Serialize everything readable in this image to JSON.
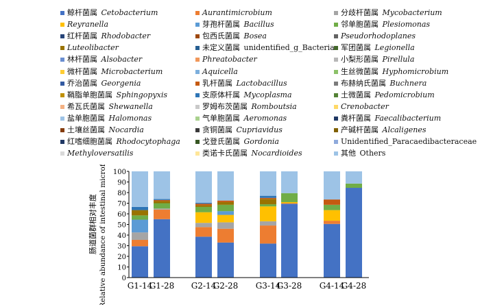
{
  "chart_data": {
    "type": "bar",
    "stacked": true,
    "categories": [
      "G1-14",
      "G1-28",
      "G2-14",
      "G2-28",
      "G3-14",
      "G3-28",
      "G4-14",
      "G4-28"
    ],
    "ylim": [
      0,
      100
    ],
    "yticks": [
      "0",
      "10",
      "20",
      "30",
      "40",
      "50",
      "60",
      "70",
      "80",
      "90",
      "100"
    ],
    "ylabel_cn": "肠道菌群相对丰度",
    "ylabel_en": "Relative abundance of intestinal microflora/%",
    "legend": [
      {
        "cn": "鲸杆菌属",
        "latin": "Cetobacterium",
        "color": "#4472c4"
      },
      {
        "cn": "",
        "latin": "Aurantimicrobium",
        "color": "#ed7d31"
      },
      {
        "cn": "分歧杆菌属",
        "latin": "Mycobacterium",
        "color": "#a5a5a5"
      },
      {
        "cn": "",
        "latin": "Reyranella",
        "color": "#ffc000"
      },
      {
        "cn": "芽孢杆菌属",
        "latin": "Bacillus",
        "color": "#5b9bd5"
      },
      {
        "cn": "邻单胞菌属",
        "latin": "Plesiomonas",
        "color": "#70ad47"
      },
      {
        "cn": "红杆菌属",
        "latin": "Rhodobacter",
        "color": "#264478"
      },
      {
        "cn": "包西氏菌属",
        "latin": "Bosea",
        "color": "#9e480e"
      },
      {
        "cn": "",
        "latin": "Pseudorhodoplanes",
        "color": "#636363"
      },
      {
        "cn": "",
        "latin": "Luteolibacter",
        "color": "#997300"
      },
      {
        "cn": "未定义菌属",
        "plain": "unidentified_g_Bacteria",
        "color": "#255e91"
      },
      {
        "cn": "军团菌属",
        "latin": "Legionella",
        "color": "#43682b"
      },
      {
        "cn": "林杆菌属",
        "latin": "Alsobacter",
        "color": "#698ed0"
      },
      {
        "cn": "",
        "latin": "Phreatobacter",
        "color": "#f1975a"
      },
      {
        "cn": "小梨形菌属",
        "latin": "Pirellula",
        "color": "#b7b7b7"
      },
      {
        "cn": "微杆菌属",
        "latin": "Microbacterium",
        "color": "#ffcd33"
      },
      {
        "cn": "",
        "latin": "Aquicella",
        "color": "#7cafdd"
      },
      {
        "cn": "生丝微菌属",
        "latin": "Hyphomicrobium",
        "color": "#8cc168"
      },
      {
        "cn": "乔治菌属",
        "latin": "Georgenia",
        "color": "#335aa1"
      },
      {
        "cn": "乳杆菌属",
        "latin": "Lactobacillus",
        "color": "#c55a11"
      },
      {
        "cn": "布赫纳氏菌属",
        "latin": "Buchnera",
        "color": "#7b7b7b"
      },
      {
        "cn": "鞘脂单胞菌属",
        "latin": "Sphingopyxis",
        "color": "#bf9000"
      },
      {
        "cn": "支原体杆属",
        "latin": "Mycoplasma",
        "color": "#2e75b6"
      },
      {
        "cn": "土微菌属",
        "latin": "Pedomicrobium",
        "color": "#548235"
      },
      {
        "cn": "希瓦氏菌属",
        "latin": "Shewanella",
        "color": "#f4b183"
      },
      {
        "cn": "罗姆布茨菌属",
        "latin": "Romboutsia",
        "color": "#c9c9c9"
      },
      {
        "cn": "",
        "latin": "Crenobacter",
        "color": "#ffd966"
      },
      {
        "cn": "盐单胞菌属",
        "latin": "Halomonas",
        "color": "#9dc3e6"
      },
      {
        "cn": "气单胞菌属",
        "latin": "Aeromonas",
        "color": "#a9d18e"
      },
      {
        "cn": "粪杆菌属",
        "latin": "Faecalibacterium",
        "color": "#1f3864"
      },
      {
        "cn": "土壤丝菌属",
        "latin": "Nocardia",
        "color": "#843c0c"
      },
      {
        "cn": "贪铜菌属",
        "latin": "Cupriavidus",
        "color": "#3a3a3a"
      },
      {
        "cn": "产碱杆菌属",
        "latin": "Alcaligenes",
        "color": "#7f6000"
      },
      {
        "cn": "红嗜细胞菌属",
        "latin": "Rhodocytophaga",
        "color": "#203864"
      },
      {
        "cn": "戈登氏菌属",
        "latin": "Gordonia",
        "color": "#375623"
      },
      {
        "cn": "",
        "plain": "Unidentified_Paracaedibacteraceae",
        "color": "#8faadc"
      },
      {
        "cn": "",
        "latin": "Methyloversatilis",
        "color": "#d9d9d9"
      },
      {
        "cn": "类诺卡氏菌属",
        "latin": "Nocardioides",
        "color": "#ffe699"
      },
      {
        "cn": "其他",
        "plain": "Others",
        "color": "#9dc3e6"
      }
    ],
    "series": [
      {
        "name": "Cetobacterium",
        "values": [
          29.5,
          55,
          38.5,
          33,
          32,
          69.5,
          50.5,
          84.5
        ]
      },
      {
        "name": "Aurantimicrobium",
        "values": [
          6,
          9,
          9,
          13,
          17,
          0.5,
          3,
          0
        ]
      },
      {
        "name": "Mycobacterium",
        "values": [
          7,
          1,
          4,
          6,
          4,
          0,
          0,
          0
        ]
      },
      {
        "name": "Reyranella",
        "values": [
          0,
          0,
          10,
          7,
          14,
          1,
          10,
          0
        ]
      },
      {
        "name": "Bacillus",
        "values": [
          12,
          0,
          0,
          3.5,
          0,
          0,
          0,
          0
        ]
      },
      {
        "name": "Plesiomonas",
        "values": [
          4,
          5,
          5,
          6,
          2,
          8.5,
          5,
          4
        ]
      },
      {
        "name": "Luteolibacter",
        "values": [
          5,
          2,
          1.5,
          2.5,
          5,
          0,
          0,
          0
        ]
      },
      {
        "name": "Lactobacillus",
        "values": [
          0,
          1,
          1.5,
          1.5,
          1,
          0,
          5,
          0
        ]
      },
      {
        "name": "Mycoplasma",
        "values": [
          3,
          1,
          1,
          0,
          2,
          0,
          0,
          0
        ]
      },
      {
        "name": "Others",
        "values": [
          33.5,
          26,
          29.5,
          27.5,
          23,
          20.5,
          26.5,
          11.5
        ]
      }
    ]
  }
}
